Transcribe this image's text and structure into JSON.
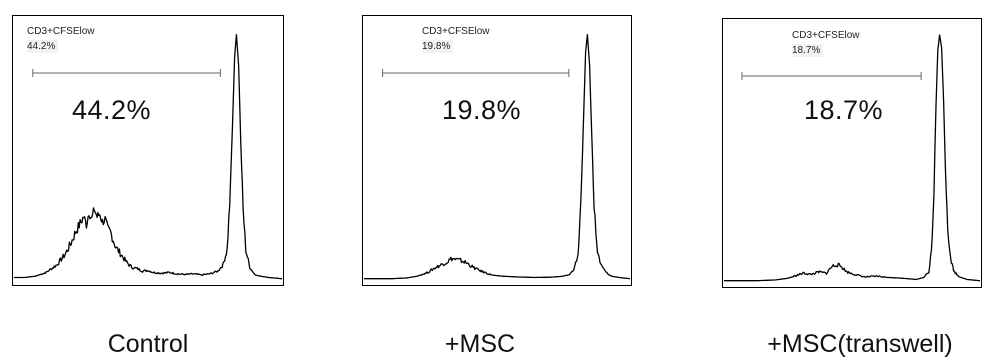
{
  "chart_data": [
    {
      "type": "area",
      "sample_label": "Control",
      "gate_name": "CD3+CFSElow",
      "gate_percent": "44.2%",
      "annotation": "44.2%",
      "xlim": [
        0,
        100
      ],
      "ylim": [
        0,
        100
      ],
      "gate_range": [
        7,
        77
      ],
      "curve": [
        [
          0,
          1
        ],
        [
          4,
          1
        ],
        [
          8,
          1.5
        ],
        [
          12,
          3
        ],
        [
          16,
          6
        ],
        [
          19,
          10
        ],
        [
          21,
          14
        ],
        [
          23,
          19
        ],
        [
          25,
          23
        ],
        [
          26,
          25
        ],
        [
          27,
          22
        ],
        [
          28,
          27
        ],
        [
          29,
          24
        ],
        [
          30,
          28
        ],
        [
          31,
          25
        ],
        [
          32,
          26
        ],
        [
          33,
          23
        ],
        [
          34,
          24
        ],
        [
          35,
          20
        ],
        [
          36,
          19
        ],
        [
          37,
          16
        ],
        [
          38,
          13
        ],
        [
          40,
          10
        ],
        [
          42,
          7
        ],
        [
          44,
          5
        ],
        [
          46,
          4.5
        ],
        [
          48,
          3.5
        ],
        [
          50,
          3.8
        ],
        [
          52,
          3
        ],
        [
          55,
          2.7
        ],
        [
          58,
          3
        ],
        [
          61,
          2.4
        ],
        [
          64,
          2.2
        ],
        [
          67,
          2.4
        ],
        [
          70,
          2
        ],
        [
          73,
          2.4
        ],
        [
          76,
          3.5
        ],
        [
          78,
          6
        ],
        [
          79.5,
          12
        ],
        [
          80.5,
          30
        ],
        [
          81.5,
          60
        ],
        [
          82.3,
          88
        ],
        [
          83,
          97
        ],
        [
          83.8,
          85
        ],
        [
          84.6,
          55
        ],
        [
          85.5,
          28
        ],
        [
          86.5,
          12
        ],
        [
          88,
          5
        ],
        [
          90,
          2
        ],
        [
          92,
          1.5
        ],
        [
          95,
          1
        ],
        [
          100,
          0.5
        ]
      ]
    },
    {
      "type": "area",
      "sample_label": "+MSC",
      "gate_name": "CD3+CFSElow",
      "gate_percent": "19.8%",
      "annotation": "19.8%",
      "xlim": [
        0,
        100
      ],
      "ylim": [
        0,
        100
      ],
      "gate_range": [
        7,
        77
      ],
      "curve": [
        [
          0,
          0.5
        ],
        [
          10,
          0.5
        ],
        [
          16,
          0.8
        ],
        [
          20,
          1.5
        ],
        [
          24,
          3
        ],
        [
          27,
          5
        ],
        [
          29,
          6
        ],
        [
          31,
          7
        ],
        [
          33,
          8.5
        ],
        [
          35,
          8
        ],
        [
          37,
          7.5
        ],
        [
          39,
          6.5
        ],
        [
          41,
          5
        ],
        [
          44,
          3.5
        ],
        [
          48,
          2
        ],
        [
          52,
          1.5
        ],
        [
          58,
          1.2
        ],
        [
          64,
          1
        ],
        [
          70,
          1.1
        ],
        [
          74,
          1.4
        ],
        [
          77,
          2
        ],
        [
          79,
          4
        ],
        [
          80.5,
          10
        ],
        [
          81.5,
          30
        ],
        [
          82.5,
          62
        ],
        [
          83.3,
          90
        ],
        [
          84,
          97
        ],
        [
          84.8,
          85
        ],
        [
          85.6,
          58
        ],
        [
          86.5,
          30
        ],
        [
          87.5,
          13
        ],
        [
          89,
          6
        ],
        [
          91,
          3
        ],
        [
          93,
          1.5
        ],
        [
          96,
          1
        ],
        [
          100,
          0.5
        ]
      ]
    },
    {
      "type": "area",
      "sample_label": "+MSC(transwell)",
      "gate_name": "CD3+CFSElow",
      "gate_percent": "18.7%",
      "annotation": "18.7%",
      "xlim": [
        0,
        100
      ],
      "ylim": [
        0,
        100
      ],
      "gate_range": [
        7,
        77
      ],
      "curve": [
        [
          0,
          0.5
        ],
        [
          12,
          0.5
        ],
        [
          20,
          0.8
        ],
        [
          25,
          1.5
        ],
        [
          28,
          2.5
        ],
        [
          31,
          3.5
        ],
        [
          34,
          3
        ],
        [
          37,
          4
        ],
        [
          40,
          3.5
        ],
        [
          42,
          6
        ],
        [
          44,
          7
        ],
        [
          46,
          6
        ],
        [
          48,
          4
        ],
        [
          51,
          3
        ],
        [
          55,
          2
        ],
        [
          60,
          2.3
        ],
        [
          64,
          1.8
        ],
        [
          68,
          1.6
        ],
        [
          72,
          1.3
        ],
        [
          75,
          1
        ],
        [
          78,
          1.8
        ],
        [
          80,
          4
        ],
        [
          81,
          12
        ],
        [
          82,
          35
        ],
        [
          82.8,
          70
        ],
        [
          83.5,
          92
        ],
        [
          84.2,
          98
        ],
        [
          85,
          93
        ],
        [
          85.8,
          72
        ],
        [
          86.5,
          45
        ],
        [
          87.4,
          22
        ],
        [
          88.5,
          9
        ],
        [
          90,
          4
        ],
        [
          92,
          2
        ],
        [
          95,
          1
        ],
        [
          100,
          0.5
        ]
      ]
    }
  ]
}
